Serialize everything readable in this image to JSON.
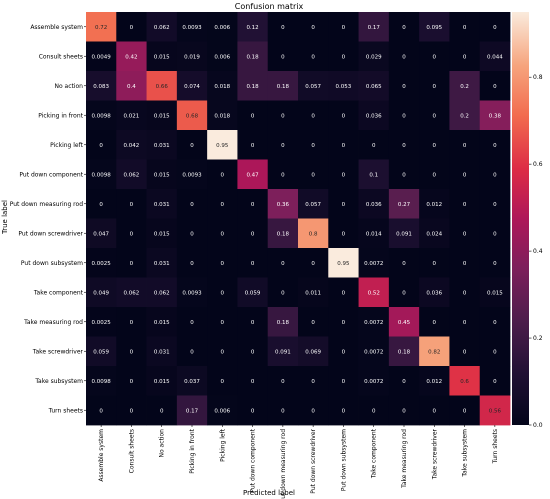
{
  "chart_data": {
    "type": "heatmap",
    "title": "Confusion matrix",
    "xlabel": "Predicted label",
    "ylabel": "True label",
    "labels": [
      "Assemble system",
      "Consult sheets",
      "No action",
      "Picking in front",
      "Picking left",
      "Put down component",
      "Put down measuring rod",
      "Put down screwdriver",
      "Put down subsystem",
      "Take component",
      "Take measuring rod",
      "Take screwdriver",
      "Take subsystem",
      "Turn sheets"
    ],
    "matrix": [
      [
        "0.72",
        "0",
        "0.062",
        "0.0093",
        "0.006",
        "0.12",
        "0",
        "0",
        "0",
        "0.17",
        "0",
        "0.095",
        "0",
        "0"
      ],
      [
        "0.0049",
        "0.42",
        "0.015",
        "0.019",
        "0.006",
        "0.18",
        "0",
        "0",
        "0",
        "0.029",
        "0",
        "0",
        "0",
        "0.044"
      ],
      [
        "0.083",
        "0.4",
        "0.66",
        "0.074",
        "0.018",
        "0.18",
        "0.18",
        "0.057",
        "0.053",
        "0.065",
        "0",
        "0",
        "0.2",
        "0"
      ],
      [
        "0.0098",
        "0.021",
        "0.015",
        "0.68",
        "0.018",
        "0",
        "0",
        "0",
        "0",
        "0.036",
        "0",
        "0",
        "0.2",
        "0.38"
      ],
      [
        "0",
        "0.042",
        "0.031",
        "0",
        "0.95",
        "0",
        "0",
        "0",
        "0",
        "0",
        "0",
        "0",
        "0",
        "0"
      ],
      [
        "0.0098",
        "0.062",
        "0.015",
        "0.0093",
        "0",
        "0.47",
        "0",
        "0",
        "0",
        "0.1",
        "0",
        "0",
        "0",
        "0"
      ],
      [
        "0",
        "0",
        "0.031",
        "0",
        "0",
        "0",
        "0.36",
        "0.057",
        "0",
        "0.036",
        "0.27",
        "0.012",
        "0",
        "0"
      ],
      [
        "0.047",
        "0",
        "0.015",
        "0",
        "0",
        "0",
        "0.18",
        "0.8",
        "0",
        "0.014",
        "0.091",
        "0.024",
        "0",
        "0"
      ],
      [
        "0.0025",
        "0",
        "0.031",
        "0",
        "0",
        "0",
        "0",
        "0",
        "0.95",
        "0.0072",
        "0",
        "0",
        "0",
        "0"
      ],
      [
        "0.049",
        "0.062",
        "0.062",
        "0.0093",
        "0",
        "0.059",
        "0",
        "0.011",
        "0",
        "0.52",
        "0",
        "0.036",
        "0",
        "0.015"
      ],
      [
        "0.0025",
        "0",
        "0.015",
        "0",
        "0",
        "0",
        "0.18",
        "0",
        "0",
        "0.0072",
        "0.45",
        "0",
        "0",
        "0"
      ],
      [
        "0.059",
        "0",
        "0.031",
        "0",
        "0",
        "0",
        "0.091",
        "0.069",
        "0",
        "0.0072",
        "0.18",
        "0.82",
        "0",
        "0"
      ],
      [
        "0.0098",
        "0",
        "0.015",
        "0.037",
        "0",
        "0",
        "0",
        "0",
        "0",
        "0.0072",
        "0",
        "0.012",
        "0.6",
        "0"
      ],
      [
        "0",
        "0",
        "0",
        "0.17",
        "0.006",
        "0",
        "0",
        "0",
        "0",
        "0",
        "0",
        "0",
        "0",
        "0.56"
      ]
    ],
    "colorbar": {
      "ticks": [
        "0.0",
        "0.2",
        "0.4",
        "0.6",
        "0.8"
      ],
      "range": [
        0,
        0.95
      ]
    },
    "colormap": "rocket",
    "grid": false,
    "legend": "colorbar-right"
  }
}
